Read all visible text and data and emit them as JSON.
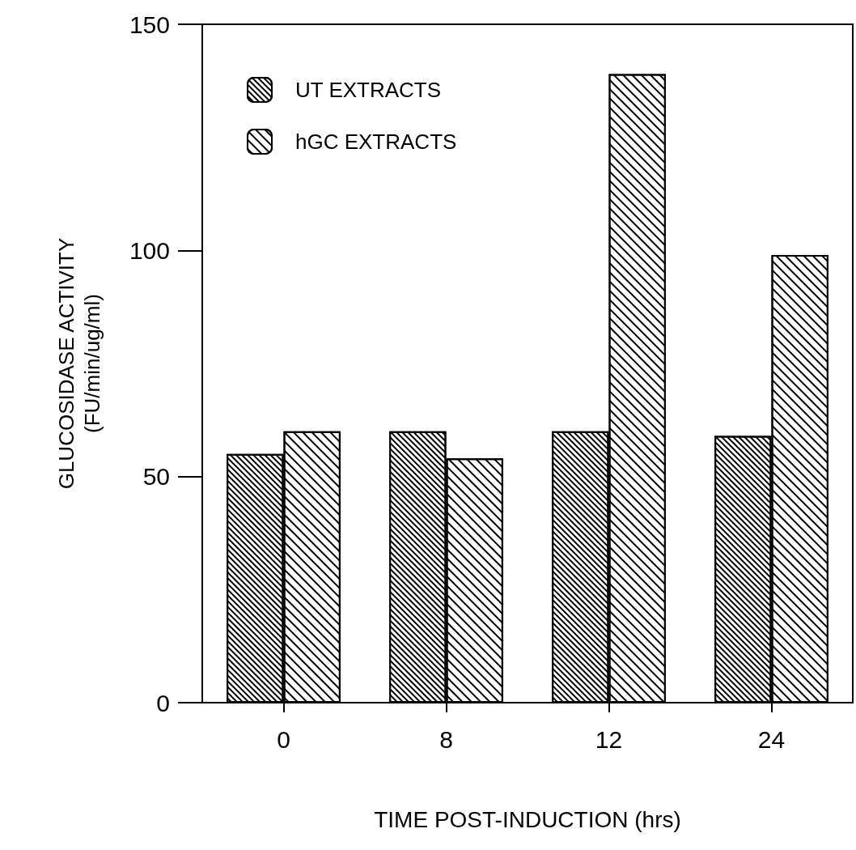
{
  "chart_data": {
    "type": "bar",
    "xlabel": "TIME POST-INDUCTION (hrs)",
    "ylabel": "GLUCOSIDASE ACTIVITY\n(FU/min/ug/ml)",
    "categories": [
      "0",
      "8",
      "12",
      "24"
    ],
    "series": [
      {
        "name": "UT EXTRACTS",
        "color": "#000000",
        "values": [
          55,
          60,
          60,
          59
        ]
      },
      {
        "name": "hGC EXTRACTS",
        "color": "#000000",
        "values": [
          60,
          54,
          139,
          99
        ]
      }
    ],
    "ylim": [
      0,
      150
    ],
    "yticks": [
      0,
      50,
      100,
      150
    ],
    "grid": false,
    "legend": "top left"
  }
}
